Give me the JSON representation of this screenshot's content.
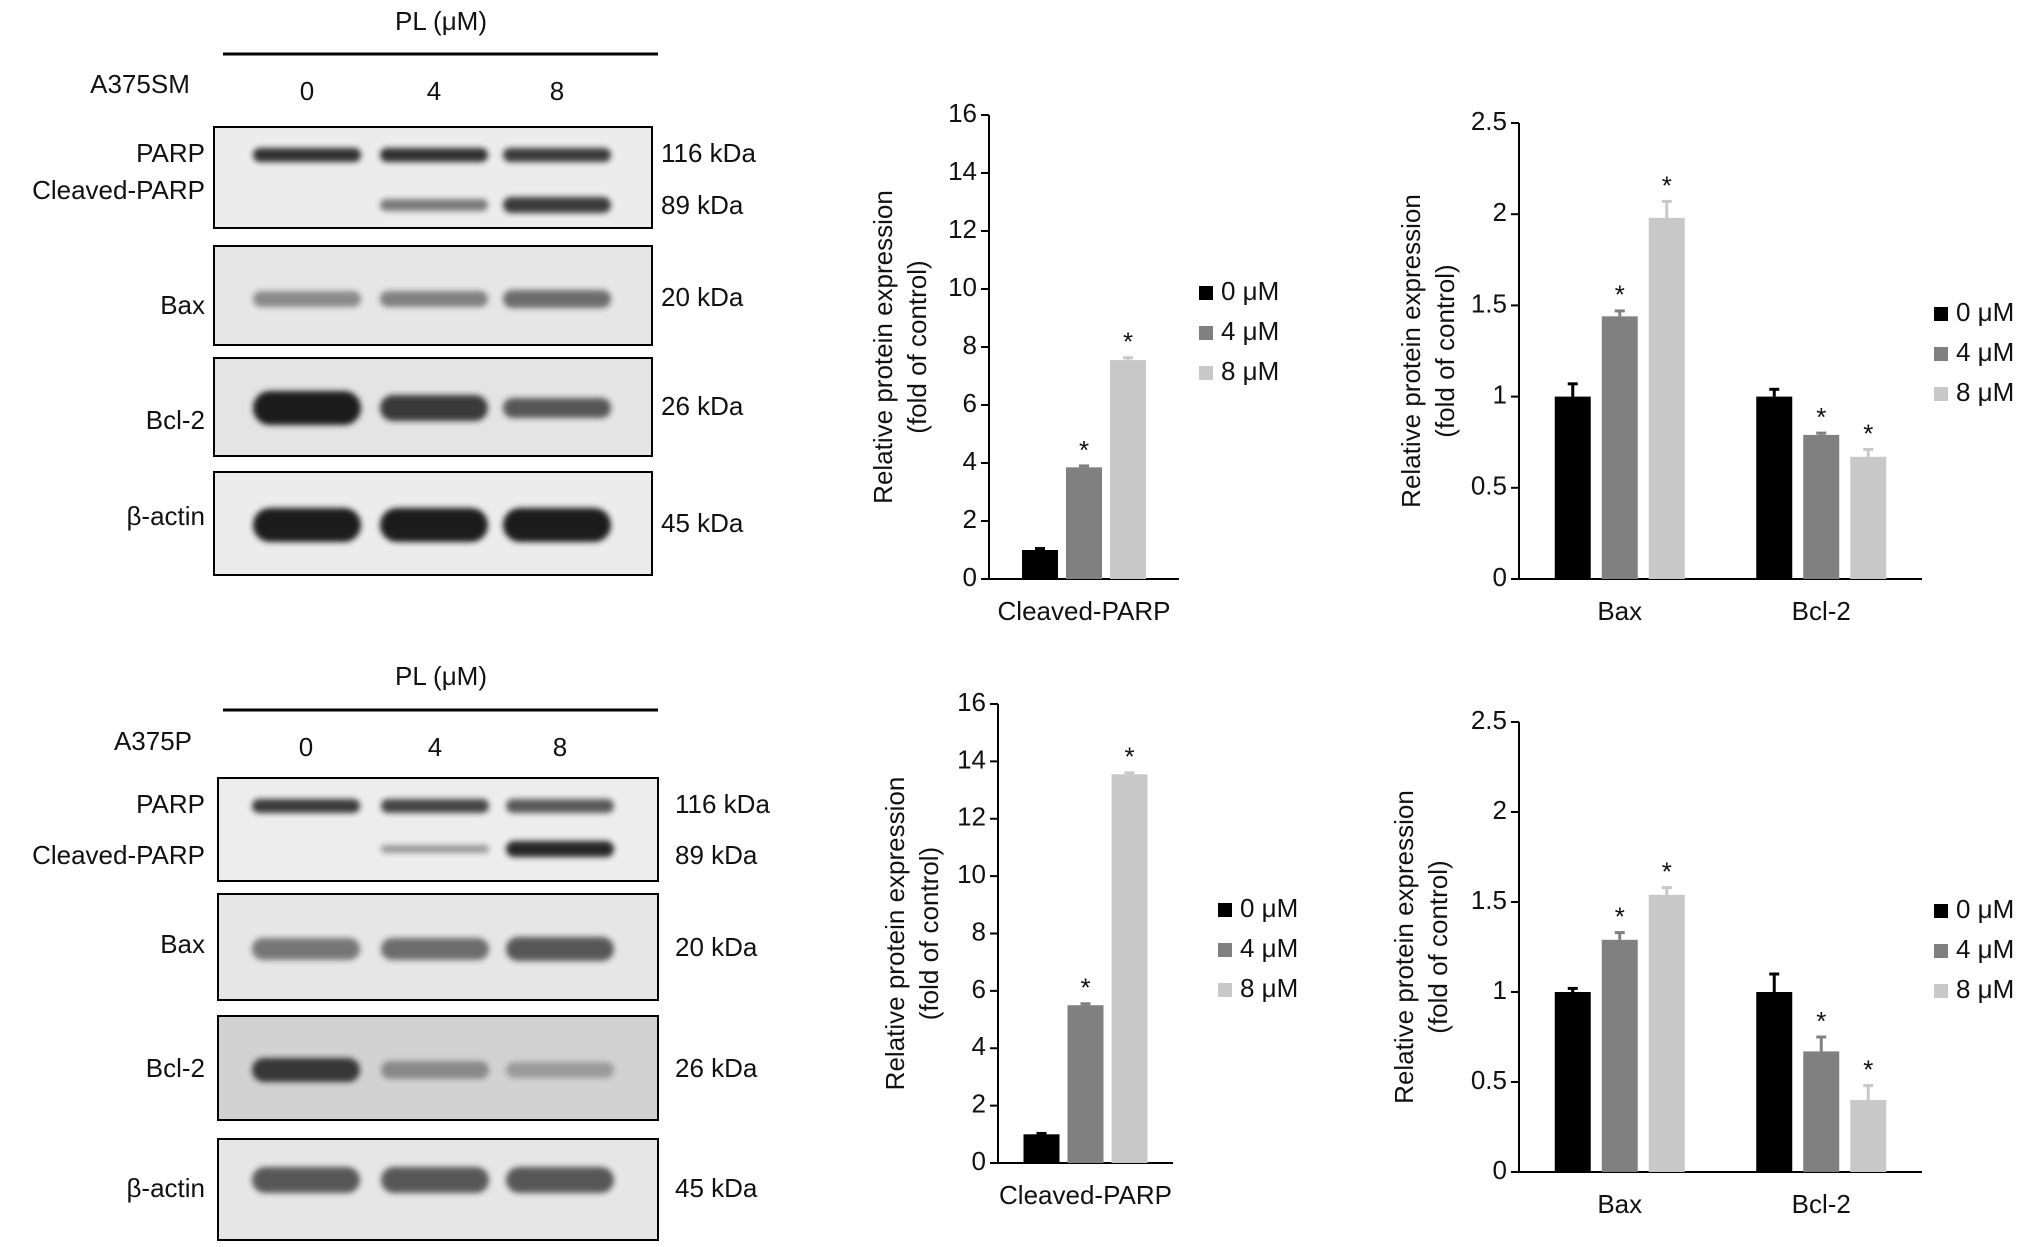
{
  "blots": [
    {
      "treatment": "PL (μM)",
      "cell_line": "A375SM",
      "lanes": [
        0,
        4,
        8
      ],
      "rows": [
        {
          "label": "PARP",
          "size": "116 kDa"
        },
        {
          "label": "Cleaved-PARP",
          "size": "89 kDa"
        },
        {
          "label": "Bax",
          "size": "20 kDa"
        },
        {
          "label": "Bcl-2",
          "size": "26 kDa"
        },
        {
          "label": "β-actin",
          "size": "45 kDa"
        }
      ]
    },
    {
      "treatment": "PL (μM)",
      "cell_line": "A375P",
      "lanes": [
        0,
        4,
        8
      ],
      "rows": [
        {
          "label": "PARP",
          "size": "116 kDa"
        },
        {
          "label": "Cleaved-PARP",
          "size": "89 kDa"
        },
        {
          "label": "Bax",
          "size": "20 kDa"
        },
        {
          "label": "Bcl-2",
          "size": "26 kDa"
        },
        {
          "label": "β-actin",
          "size": "45 kDa"
        }
      ]
    }
  ],
  "chart_data": [
    {
      "type": "bar",
      "y_label": [
        "Relative protein expression",
        "(fold of control)"
      ],
      "categories": [
        "Cleaved-PARP"
      ],
      "ylim": [
        0,
        16
      ],
      "yticks": [
        0,
        2,
        4,
        6,
        8,
        10,
        12,
        14,
        16
      ],
      "series": [
        {
          "name": "0 μM",
          "color": "#000000",
          "values": [
            1.0
          ],
          "errors": [
            0.05
          ],
          "annotations": [
            null
          ]
        },
        {
          "name": "4 μM",
          "color": "#808080",
          "values": [
            3.85
          ],
          "errors": [
            0.05
          ],
          "annotations": [
            "*"
          ]
        },
        {
          "name": "8 μM",
          "color": "#c8c8c8",
          "values": [
            7.55
          ],
          "errors": [
            0.08
          ],
          "annotations": [
            "*"
          ]
        }
      ]
    },
    {
      "type": "bar",
      "y_label": [
        "Relative protein expression",
        "(fold of control)"
      ],
      "categories": [
        "Bax",
        "Bcl-2"
      ],
      "ylim": [
        0,
        2.5
      ],
      "yticks": [
        0,
        0.5,
        1,
        1.5,
        2,
        2.5
      ],
      "series": [
        {
          "name": "0 μM",
          "color": "#000000",
          "values": [
            1.0,
            1.0
          ],
          "errors": [
            0.07,
            0.04
          ],
          "annotations": [
            null,
            null
          ]
        },
        {
          "name": "4 μM",
          "color": "#808080",
          "values": [
            1.44,
            0.79
          ],
          "errors": [
            0.03,
            0.01
          ],
          "annotations": [
            "*",
            "*"
          ]
        },
        {
          "name": "8 μM",
          "color": "#c8c8c8",
          "values": [
            1.98,
            0.67
          ],
          "errors": [
            0.09,
            0.04
          ],
          "annotations": [
            "*",
            "*"
          ]
        }
      ]
    },
    {
      "type": "bar",
      "y_label": [
        "Relative protein expression",
        "(fold of control)"
      ],
      "categories": [
        "Cleaved-PARP"
      ],
      "ylim": [
        0,
        16
      ],
      "yticks": [
        0,
        2,
        4,
        6,
        8,
        10,
        12,
        14,
        16
      ],
      "series": [
        {
          "name": "0 μM",
          "color": "#000000",
          "values": [
            1.0
          ],
          "errors": [
            0.03
          ],
          "annotations": [
            null
          ]
        },
        {
          "name": "4 μM",
          "color": "#808080",
          "values": [
            5.5
          ],
          "errors": [
            0.05
          ],
          "annotations": [
            "*"
          ]
        },
        {
          "name": "8 μM",
          "color": "#c8c8c8",
          "values": [
            13.55
          ],
          "errors": [
            0.05
          ],
          "annotations": [
            "*"
          ]
        }
      ]
    },
    {
      "type": "bar",
      "y_label": [
        "Relative protein expression",
        "(fold of control)"
      ],
      "categories": [
        "Bax",
        "Bcl-2"
      ],
      "ylim": [
        0,
        2.5
      ],
      "yticks": [
        0,
        0.5,
        1,
        1.5,
        2,
        2.5
      ],
      "series": [
        {
          "name": "0 μM",
          "color": "#000000",
          "values": [
            1.0,
            1.0
          ],
          "errors": [
            0.02,
            0.1
          ],
          "annotations": [
            null,
            null
          ]
        },
        {
          "name": "4 μM",
          "color": "#808080",
          "values": [
            1.29,
            0.67
          ],
          "errors": [
            0.04,
            0.08
          ],
          "annotations": [
            "*",
            "*"
          ]
        },
        {
          "name": "8 μM",
          "color": "#c8c8c8",
          "values": [
            1.54,
            0.4
          ],
          "errors": [
            0.04,
            0.08
          ],
          "annotations": [
            "*",
            "*"
          ]
        }
      ]
    }
  ]
}
